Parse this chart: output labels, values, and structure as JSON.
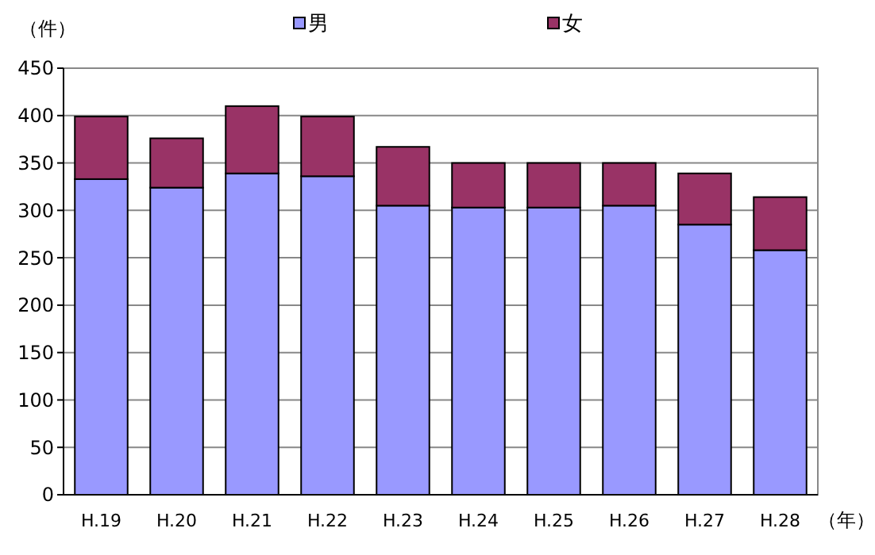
{
  "chart_data": {
    "type": "bar",
    "stacked": true,
    "ylabel": "（件）",
    "xlabel": "（年）",
    "categories": [
      "H.19",
      "H.20",
      "H.21",
      "H.22",
      "H.23",
      "H.24",
      "H.25",
      "H.26",
      "H.27",
      "H.28"
    ],
    "series": [
      {
        "name": "男",
        "color": "#9999ff",
        "values": [
          333,
          324,
          339,
          336,
          305,
          303,
          303,
          305,
          285,
          258
        ]
      },
      {
        "name": "女",
        "color": "#993366",
        "values": [
          66,
          52,
          71,
          63,
          62,
          47,
          47,
          45,
          54,
          56
        ]
      }
    ],
    "ylim": [
      0,
      450
    ],
    "yticks": [
      0,
      50,
      100,
      150,
      200,
      250,
      300,
      350,
      400,
      450
    ],
    "grid": "y",
    "legend": "top"
  }
}
